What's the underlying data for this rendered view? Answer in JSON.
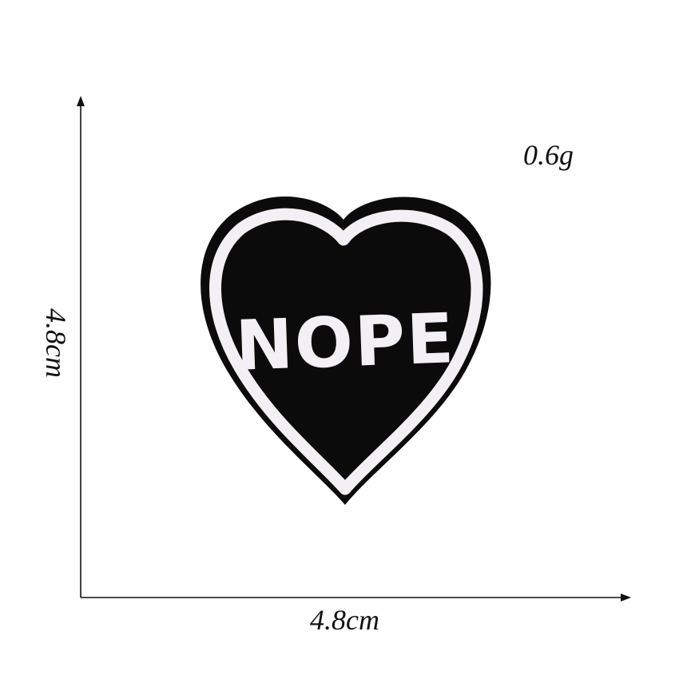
{
  "dimensions": {
    "height": "4.8cm",
    "width": "4.8cm",
    "weight": "0.6g"
  },
  "patch": {
    "text": "NOPE",
    "fabric_color": "#0b0b0b",
    "stitch_color": "#f2f0f4"
  },
  "axis_color": "#111111"
}
